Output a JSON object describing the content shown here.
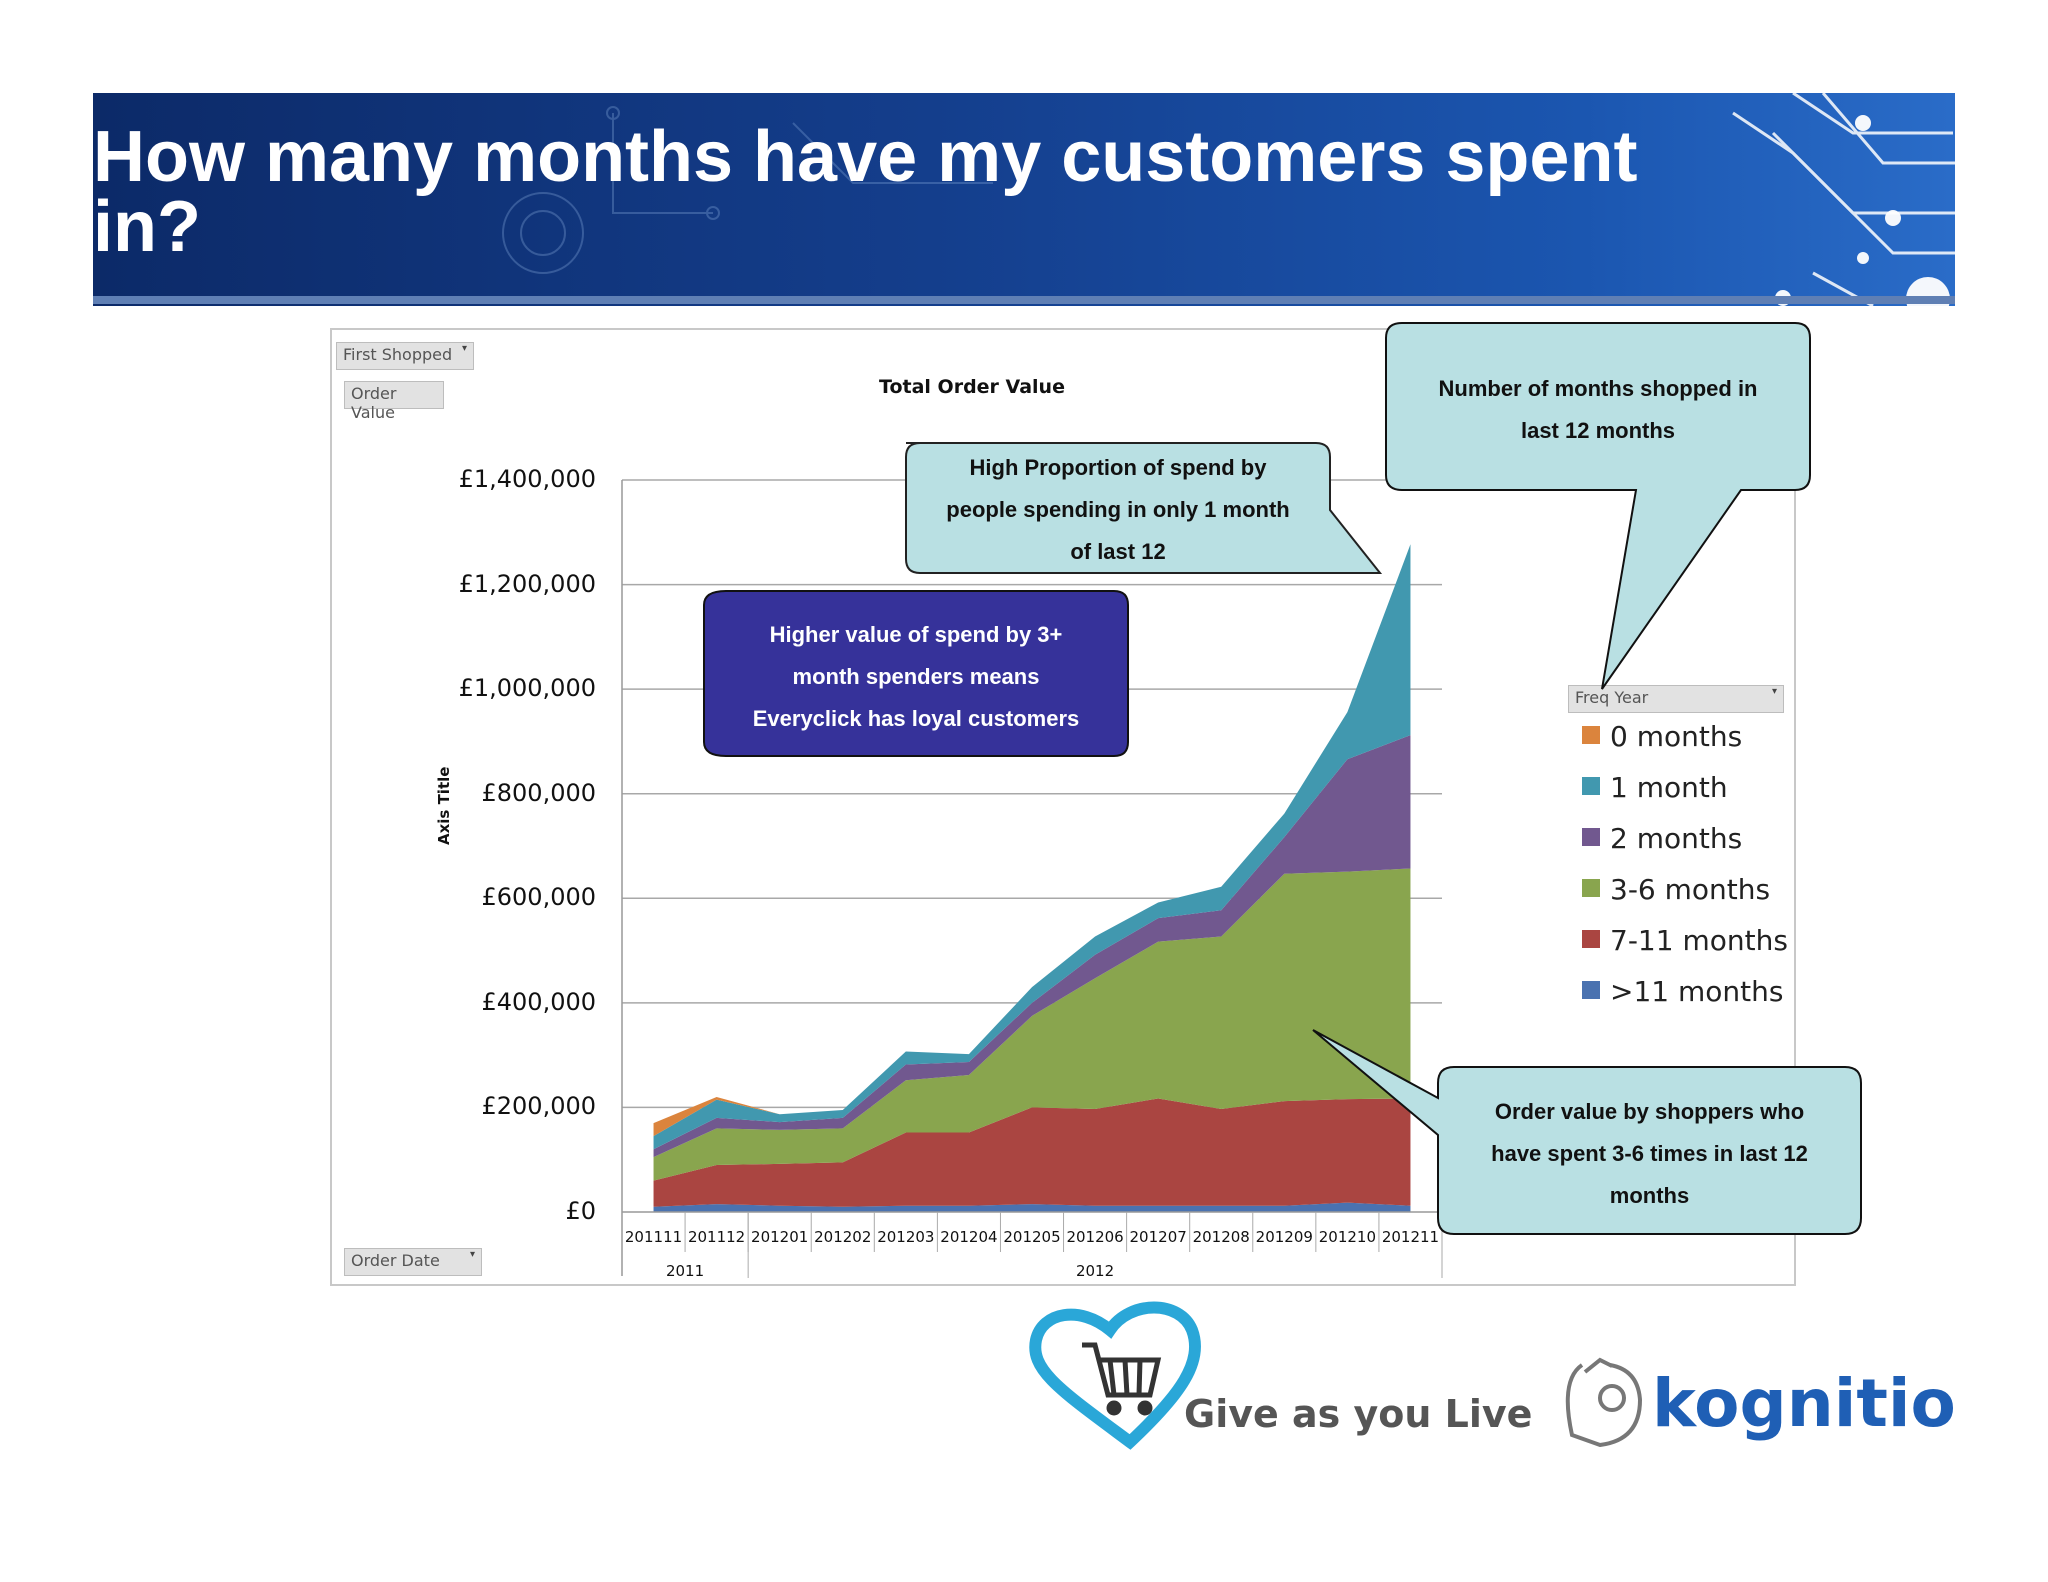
{
  "slide": {
    "title": "How many months have my customers spent in?",
    "title_line1": "How many months have my customers spent",
    "title_line2": "in?"
  },
  "pivot_buttons": {
    "first_shopped": "First Shopped",
    "order_value": "Order Value",
    "order_date": "Order Date",
    "freq_year": "Freq Year"
  },
  "chart_data": {
    "type": "area",
    "stacked": true,
    "title": "Total Order Value",
    "ylabel": "Axis Title",
    "ylim": [
      0,
      1400000
    ],
    "y_ticks": [
      "£0",
      "£200,000",
      "£400,000",
      "£600,000",
      "£800,000",
      "£1,000,000",
      "£1,200,000",
      "£1,400,000"
    ],
    "categories": [
      "201111",
      "201112",
      "201201",
      "201202",
      "201203",
      "201204",
      "201205",
      "201206",
      "201207",
      "201208",
      "201209",
      "201210",
      "201211"
    ],
    "year_groups": [
      {
        "label": "2011",
        "count": 2
      },
      {
        "label": "2012",
        "count": 11
      }
    ],
    "legend_title": "Freq Year",
    "legend_position": "right",
    "grid": true,
    "series": [
      {
        "name": ">11 months",
        "color": "#4a72b0",
        "values": [
          10000,
          15000,
          12000,
          10000,
          12000,
          12000,
          15000,
          12000,
          12000,
          12000,
          12000,
          18000,
          12000
        ]
      },
      {
        "name": "7-11 months",
        "color": "#aa4541",
        "values": [
          50000,
          75000,
          80000,
          85000,
          140000,
          140000,
          185000,
          185000,
          205000,
          185000,
          200000,
          198000,
          205000
        ]
      },
      {
        "name": "3-6 months",
        "color": "#89a54e",
        "values": [
          45000,
          70000,
          65000,
          65000,
          100000,
          110000,
          175000,
          250000,
          300000,
          330000,
          435000,
          435000,
          440000
        ]
      },
      {
        "name": "2 months",
        "color": "#71588f",
        "values": [
          15000,
          20000,
          15000,
          20000,
          30000,
          25000,
          25000,
          45000,
          45000,
          50000,
          70000,
          215000,
          255000
        ]
      },
      {
        "name": "1 month",
        "color": "#4198af",
        "values": [
          25000,
          35000,
          15000,
          15000,
          25000,
          15000,
          30000,
          35000,
          30000,
          45000,
          45000,
          90000,
          365000
        ]
      },
      {
        "name": "0 months",
        "color": "#db843d",
        "values": [
          25000,
          5000,
          0,
          0,
          0,
          0,
          0,
          0,
          0,
          0,
          0,
          0,
          0
        ]
      }
    ],
    "legend": [
      "0 months",
      "1 month",
      "2 months",
      "3-6 months",
      "7-11 months",
      ">11 months"
    ]
  },
  "callouts": {
    "high_proportion": [
      "High Proportion of spend by",
      "people spending in only 1 month",
      "of last 12"
    ],
    "higher_value": [
      "Higher value of spend by 3+",
      "month spenders means",
      "Everyclick has loyal customers"
    ],
    "months_shopped": [
      "Number of months shopped in",
      "last 12 months"
    ],
    "order_value": [
      "Order value by shoppers who",
      "have spent 3-6 times in last 12",
      "months"
    ]
  },
  "logos": {
    "gayl": "Give as you Live",
    "kognitio": "kognitio"
  },
  "colors": {
    "banner": "#143e8c",
    "callout_light": "#b9e0e3",
    "callout_dark": "#36329a",
    "kognitio_blue": "#1f5fb5",
    "heart_blue": "#2aa7d8"
  }
}
